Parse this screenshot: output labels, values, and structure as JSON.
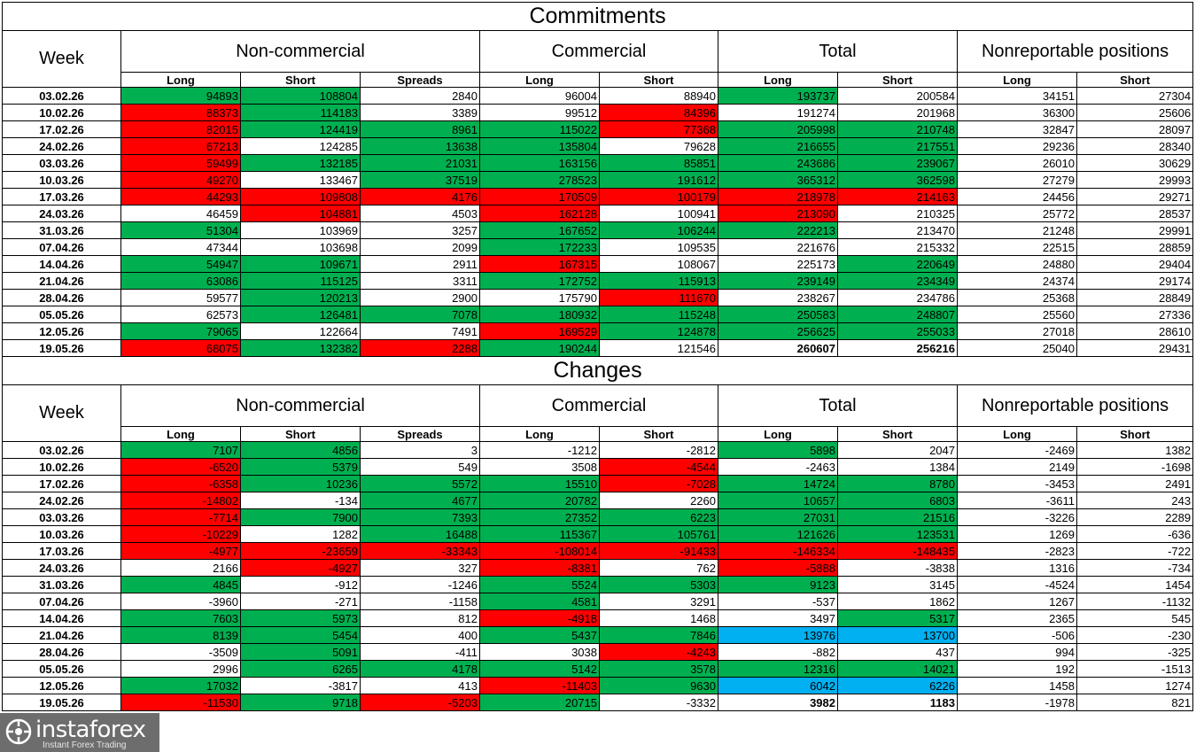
{
  "colors": {
    "green": "#00b050",
    "red": "#ff0000",
    "blue": "#00b0f0"
  },
  "headers": {
    "week": "Week",
    "groups": [
      "Non-commercial",
      "Commercial",
      "Total",
      "Nonreportable positions"
    ],
    "sub": [
      "Long",
      "Short",
      "Spreads",
      "Long",
      "Short",
      "Long",
      "Short",
      "Long",
      "Short"
    ]
  },
  "sections": [
    {
      "title": "Commitments",
      "rows": [
        {
          "week": "03.02.26",
          "values": [
            "94893",
            "108804",
            "2840",
            "96004",
            "88940",
            "193737",
            "200584",
            "34151",
            "27304"
          ],
          "colors": [
            "g",
            "g",
            "",
            "",
            "",
            "g",
            "",
            "",
            ""
          ]
        },
        {
          "week": "10.02.26",
          "values": [
            "88373",
            "114183",
            "3389",
            "99512",
            "84396",
            "191274",
            "201968",
            "36300",
            "25606"
          ],
          "colors": [
            "r",
            "g",
            "",
            "",
            "r",
            "",
            "",
            "",
            ""
          ]
        },
        {
          "week": "17.02.26",
          "values": [
            "82015",
            "124419",
            "8961",
            "115022",
            "77368",
            "205998",
            "210748",
            "32847",
            "28097"
          ],
          "colors": [
            "r",
            "g",
            "g",
            "g",
            "r",
            "g",
            "g",
            "",
            ""
          ]
        },
        {
          "week": "24.02.26",
          "values": [
            "67213",
            "124285",
            "13638",
            "135804",
            "79628",
            "216655",
            "217551",
            "29236",
            "28340"
          ],
          "colors": [
            "r",
            "",
            "g",
            "g",
            "",
            "g",
            "g",
            "",
            ""
          ]
        },
        {
          "week": "03.03.26",
          "values": [
            "59499",
            "132185",
            "21031",
            "163156",
            "85851",
            "243686",
            "239067",
            "26010",
            "30629"
          ],
          "colors": [
            "r",
            "g",
            "g",
            "g",
            "g",
            "g",
            "g",
            "",
            ""
          ]
        },
        {
          "week": "10.03.26",
          "values": [
            "49270",
            "133467",
            "37519",
            "278523",
            "191612",
            "365312",
            "362598",
            "27279",
            "29993"
          ],
          "colors": [
            "r",
            "",
            "g",
            "g",
            "g",
            "g",
            "g",
            "",
            ""
          ]
        },
        {
          "week": "17.03.26",
          "values": [
            "44293",
            "109808",
            "4176",
            "170509",
            "100179",
            "218978",
            "214163",
            "24456",
            "29271"
          ],
          "colors": [
            "r",
            "r",
            "r",
            "r",
            "r",
            "r",
            "r",
            "",
            ""
          ]
        },
        {
          "week": "24.03.26",
          "values": [
            "46459",
            "104881",
            "4503",
            "162128",
            "100941",
            "213090",
            "210325",
            "25772",
            "28537"
          ],
          "colors": [
            "",
            "r",
            "",
            "r",
            "",
            "r",
            "",
            "",
            ""
          ]
        },
        {
          "week": "31.03.26",
          "values": [
            "51304",
            "103969",
            "3257",
            "167652",
            "106244",
            "222213",
            "213470",
            "21248",
            "29991"
          ],
          "colors": [
            "g",
            "",
            "",
            "g",
            "g",
            "g",
            "",
            "",
            ""
          ]
        },
        {
          "week": "07.04.26",
          "values": [
            "47344",
            "103698",
            "2099",
            "172233",
            "109535",
            "221676",
            "215332",
            "22515",
            "28859"
          ],
          "colors": [
            "",
            "",
            "",
            "g",
            "",
            "",
            "",
            "",
            ""
          ]
        },
        {
          "week": "14.04.26",
          "values": [
            "54947",
            "109671",
            "2911",
            "167315",
            "108067",
            "225173",
            "220649",
            "24880",
            "29404"
          ],
          "colors": [
            "g",
            "g",
            "",
            "r",
            "",
            "",
            "g",
            "",
            ""
          ]
        },
        {
          "week": "21.04.26",
          "values": [
            "63086",
            "115125",
            "3311",
            "172752",
            "115913",
            "239149",
            "234349",
            "24374",
            "29174"
          ],
          "colors": [
            "g",
            "g",
            "",
            "g",
            "g",
            "g",
            "g",
            "",
            ""
          ]
        },
        {
          "week": "28.04.26",
          "values": [
            "59577",
            "120213",
            "2900",
            "175790",
            "111670",
            "238267",
            "234786",
            "25368",
            "28849"
          ],
          "colors": [
            "",
            "g",
            "",
            "",
            "r",
            "",
            "",
            "",
            ""
          ]
        },
        {
          "week": "05.05.26",
          "values": [
            "62573",
            "126481",
            "7078",
            "180932",
            "115248",
            "250583",
            "248807",
            "25560",
            "27336"
          ],
          "colors": [
            "",
            "g",
            "g",
            "g",
            "g",
            "g",
            "g",
            "",
            ""
          ]
        },
        {
          "week": "12.05.26",
          "values": [
            "79065",
            "122664",
            "7491",
            "169529",
            "124878",
            "256625",
            "255033",
            "27018",
            "28610"
          ],
          "colors": [
            "g",
            "",
            "",
            "r",
            "g",
            "g",
            "g",
            "",
            ""
          ]
        },
        {
          "week": "19.05.26",
          "values": [
            "68075",
            "132382",
            "2288",
            "190244",
            "121546",
            "260607",
            "256216",
            "25040",
            "29431"
          ],
          "colors": [
            "r",
            "g",
            "r",
            "g",
            "",
            "",
            "",
            "",
            ""
          ],
          "bold": [
            5,
            6
          ]
        }
      ]
    },
    {
      "title": "Changes",
      "rows": [
        {
          "week": "03.02.26",
          "values": [
            "7107",
            "4856",
            "3",
            "-1212",
            "-2812",
            "5898",
            "2047",
            "-2469",
            "1382"
          ],
          "colors": [
            "g",
            "g",
            "",
            "",
            "",
            "g",
            "",
            "",
            ""
          ]
        },
        {
          "week": "10.02.26",
          "values": [
            "-6520",
            "5379",
            "549",
            "3508",
            "-4544",
            "-2463",
            "1384",
            "2149",
            "-1698"
          ],
          "colors": [
            "r",
            "g",
            "",
            "",
            "r",
            "",
            "",
            "",
            ""
          ]
        },
        {
          "week": "17.02.26",
          "values": [
            "-6358",
            "10236",
            "5572",
            "15510",
            "-7028",
            "14724",
            "8780",
            "-3453",
            "2491"
          ],
          "colors": [
            "r",
            "g",
            "g",
            "g",
            "r",
            "g",
            "g",
            "",
            ""
          ]
        },
        {
          "week": "24.02.26",
          "values": [
            "-14802",
            "-134",
            "4677",
            "20782",
            "2260",
            "10657",
            "6803",
            "-3611",
            "243"
          ],
          "colors": [
            "r",
            "",
            "g",
            "g",
            "",
            "g",
            "g",
            "",
            ""
          ]
        },
        {
          "week": "03.03.26",
          "values": [
            "-7714",
            "7900",
            "7393",
            "27352",
            "6223",
            "27031",
            "21516",
            "-3226",
            "2289"
          ],
          "colors": [
            "r",
            "g",
            "g",
            "g",
            "g",
            "g",
            "g",
            "",
            ""
          ]
        },
        {
          "week": "10.03.26",
          "values": [
            "-10229",
            "1282",
            "16488",
            "115367",
            "105761",
            "121626",
            "123531",
            "1269",
            "-636"
          ],
          "colors": [
            "r",
            "",
            "g",
            "g",
            "g",
            "g",
            "g",
            "",
            ""
          ]
        },
        {
          "week": "17.03.26",
          "values": [
            "-4977",
            "-23659",
            "-33343",
            "-108014",
            "-91433",
            "-146334",
            "-148435",
            "-2823",
            "-722"
          ],
          "colors": [
            "r",
            "r",
            "r",
            "r",
            "r",
            "r",
            "r",
            "",
            ""
          ]
        },
        {
          "week": "24.03.26",
          "values": [
            "2166",
            "-4927",
            "327",
            "-8381",
            "762",
            "-5888",
            "-3838",
            "1316",
            "-734"
          ],
          "colors": [
            "",
            "r",
            "",
            "r",
            "",
            "r",
            "",
            "",
            ""
          ]
        },
        {
          "week": "31.03.26",
          "values": [
            "4845",
            "-912",
            "-1246",
            "5524",
            "5303",
            "9123",
            "3145",
            "-4524",
            "1454"
          ],
          "colors": [
            "g",
            "",
            "",
            "g",
            "g",
            "g",
            "",
            "",
            ""
          ]
        },
        {
          "week": "07.04.26",
          "values": [
            "-3960",
            "-271",
            "-1158",
            "4581",
            "3291",
            "-537",
            "1862",
            "1267",
            "-1132"
          ],
          "colors": [
            "",
            "",
            "",
            "g",
            "",
            "",
            "",
            "",
            ""
          ]
        },
        {
          "week": "14.04.26",
          "values": [
            "7603",
            "5973",
            "812",
            "-4918",
            "1468",
            "3497",
            "5317",
            "2365",
            "545"
          ],
          "colors": [
            "g",
            "g",
            "",
            "r",
            "",
            "",
            "g",
            "",
            ""
          ]
        },
        {
          "week": "21.04.26",
          "values": [
            "8139",
            "5454",
            "400",
            "5437",
            "7846",
            "13976",
            "13700",
            "-506",
            "-230"
          ],
          "colors": [
            "g",
            "g",
            "",
            "g",
            "g",
            "b",
            "b",
            "",
            ""
          ]
        },
        {
          "week": "28.04.26",
          "values": [
            "-3509",
            "5091",
            "-411",
            "3038",
            "-4243",
            "-882",
            "437",
            "994",
            "-325"
          ],
          "colors": [
            "",
            "g",
            "",
            "",
            "r",
            "",
            "",
            "",
            ""
          ]
        },
        {
          "week": "05.05.26",
          "values": [
            "2996",
            "6265",
            "4178",
            "5142",
            "3578",
            "12316",
            "14021",
            "192",
            "-1513"
          ],
          "colors": [
            "",
            "g",
            "g",
            "g",
            "g",
            "g",
            "g",
            "",
            ""
          ]
        },
        {
          "week": "12.05.26",
          "values": [
            "17032",
            "-3817",
            "413",
            "-11403",
            "9630",
            "6042",
            "6226",
            "1458",
            "1274"
          ],
          "colors": [
            "g",
            "",
            "",
            "r",
            "g",
            "b",
            "b",
            "",
            ""
          ]
        },
        {
          "week": "19.05.26",
          "values": [
            "-11530",
            "9718",
            "-5203",
            "20715",
            "-3332",
            "3982",
            "1183",
            "-1978",
            "821"
          ],
          "colors": [
            "r",
            "g",
            "r",
            "g",
            "",
            "",
            "",
            "",
            ""
          ],
          "bold": [
            5,
            6
          ]
        }
      ]
    }
  ],
  "watermark": {
    "brand": "instaforex",
    "tagline": "Instant Forex Trading",
    "icon": "instaforex-logo-icon"
  }
}
